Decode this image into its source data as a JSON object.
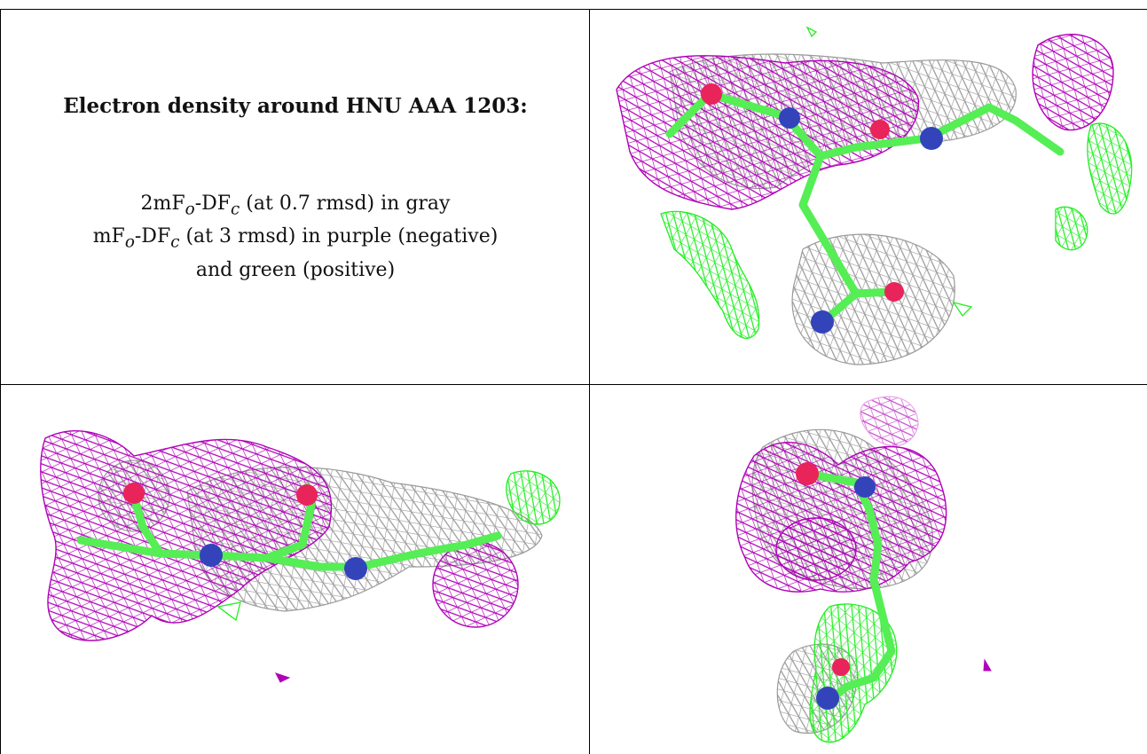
{
  "title": "Electron density around HNU AAA 1203:",
  "legend": {
    "line1_prefix": "2mF",
    "line1_sub_o": "o",
    "line1_mid": "-DF",
    "line1_sub_c": "c",
    "line1_suffix": " (at 0.7 rmsd) in gray",
    "line2_prefix": "mF",
    "line2_sub_o": "o",
    "line2_mid": "-DF",
    "line2_sub_c": "c",
    "line2_suffix": " (at 3 rmsd) in purple (negative)",
    "line3": "and green (positive)"
  },
  "colors": {
    "gray_map": "#9a9a9a",
    "purple_map": "#b000b8",
    "green_map": "#22ee22",
    "nitrogen": "#3344bb",
    "oxygen": "#e8245a",
    "carbon_stick": "#55ee55"
  }
}
